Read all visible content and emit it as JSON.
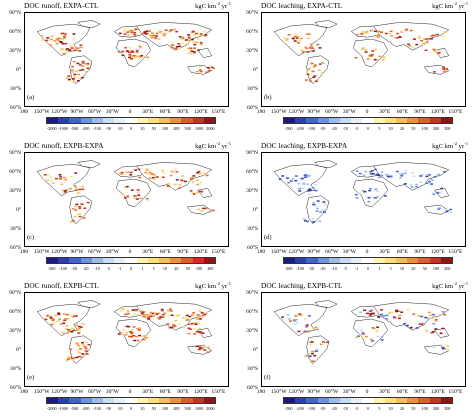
{
  "panels": [
    {
      "title": "DOC runoff, EXPA-CTL",
      "unit_base": "kgC km",
      "unit_exp1": "-2",
      "unit_mid": " yr",
      "unit_exp2": "-1",
      "label": "(a)",
      "ticks": [
        "-2000",
        "-1000",
        "-500",
        "-200",
        "-100",
        "-50",
        "-10",
        "0",
        "10",
        "50",
        "100",
        "200",
        "500",
        "1000",
        "2000"
      ],
      "tone": "warm",
      "density": 1.0
    },
    {
      "title": "DOC leaching, EXPA-CTL",
      "unit_base": "kgC km",
      "unit_exp1": "-2",
      "unit_mid": " yr",
      "unit_exp2": "-1",
      "label": "(b)",
      "ticks": [
        "-500",
        "-200",
        "-100",
        "-50",
        "-20",
        "-10",
        "-5",
        "0",
        "5",
        "10",
        "20",
        "50",
        "100",
        "200",
        "500"
      ],
      "tone": "warm",
      "density": 0.6
    },
    {
      "title": "DOC runoff, EXPB-EXPA",
      "unit_base": "kgC km",
      "unit_exp1": "-2",
      "unit_mid": " yr",
      "unit_exp2": "-1",
      "label": "(c)",
      "ticks": [
        "-200",
        "-100",
        "-50",
        "-20",
        "-10",
        "-5",
        "-1",
        "0",
        "1",
        "5",
        "10",
        "20",
        "50",
        "100",
        "200"
      ],
      "tone": "warm",
      "density": 0.55
    },
    {
      "title": "DOC leaching, EXPB-EXPA",
      "unit_base": "kgC km",
      "unit_exp1": "-2",
      "unit_mid": " yr",
      "unit_exp2": "-1",
      "label": "(d)",
      "ticks": [
        "-200",
        "-100",
        "-50",
        "-20",
        "-10",
        "-5",
        "-1",
        "0",
        "1",
        "5",
        "10",
        "20",
        "50",
        "100",
        "200"
      ],
      "tone": "cool",
      "density": 0.55
    },
    {
      "title": "DOC runoff, EXPB-CTL",
      "unit_base": "kgC km",
      "unit_exp1": "-2",
      "unit_mid": " yr",
      "unit_exp2": "-1",
      "label": "(e)",
      "ticks": [
        "-2000",
        "-1000",
        "-500",
        "-200",
        "-100",
        "-50",
        "-10",
        "0",
        "10",
        "50",
        "100",
        "200",
        "500",
        "1000",
        "2000"
      ],
      "tone": "warm",
      "density": 1.0
    },
    {
      "title": "DOC leaching, EXPB-CTL",
      "unit_base": "kgC km",
      "unit_exp1": "-2",
      "unit_mid": " yr",
      "unit_exp2": "-1",
      "label": "(f)",
      "ticks": [
        "-500",
        "-200",
        "-100",
        "-50",
        "-20",
        "-10",
        "-5",
        "0",
        "5",
        "10",
        "20",
        "50",
        "100",
        "200",
        "500"
      ],
      "tone": "mixed",
      "density": 0.6
    }
  ],
  "lat_labels": [
    "90°N",
    "60°N",
    "30°N",
    "0°",
    "30°S",
    "60°S"
  ],
  "lon_labels": [
    "180",
    "150°W",
    "120°W",
    "90°W",
    "60°W",
    "30°W",
    "0",
    "30°E",
    "60°E",
    "90°E",
    "120°E",
    "150°E"
  ],
  "colorbar_colors": [
    "#1a1a80",
    "#2b3fb0",
    "#3f66cf",
    "#6b93df",
    "#9cbbe8",
    "#c7dcf0",
    "#e6eef7",
    "#ffffff",
    "#fff3b0",
    "#fde07a",
    "#f9be55",
    "#f28f3b",
    "#e25d2a",
    "#c8321f",
    "#8f1414"
  ],
  "chart_data": [
    {
      "type": "heatmap",
      "title": "DOC runoff, EXPA-CTL",
      "units": "kgC km-2 yr-1",
      "ylim": [
        "60°S",
        "90°N"
      ],
      "xlim": [
        "180",
        "150°E"
      ],
      "colorbar_ticks": [
        -2000,
        -1000,
        -500,
        -200,
        -100,
        -50,
        -10,
        0,
        10,
        50,
        100,
        200,
        500,
        1000,
        2000
      ]
    },
    {
      "type": "heatmap",
      "title": "DOC leaching, EXPA-CTL",
      "units": "kgC km-2 yr-1",
      "ylim": [
        "60°S",
        "90°N"
      ],
      "xlim": [
        "180",
        "150°E"
      ],
      "colorbar_ticks": [
        -500,
        -200,
        -100,
        -50,
        -20,
        -10,
        -5,
        0,
        5,
        10,
        20,
        50,
        100,
        200,
        500
      ]
    },
    {
      "type": "heatmap",
      "title": "DOC runoff, EXPB-EXPA",
      "units": "kgC km-2 yr-1",
      "ylim": [
        "60°S",
        "90°N"
      ],
      "xlim": [
        "180",
        "150°E"
      ],
      "colorbar_ticks": [
        -200,
        -100,
        -50,
        -20,
        -10,
        -5,
        -1,
        0,
        1,
        5,
        10,
        20,
        50,
        100,
        200
      ]
    },
    {
      "type": "heatmap",
      "title": "DOC leaching, EXPB-EXPA",
      "units": "kgC km-2 yr-1",
      "ylim": [
        "60°S",
        "90°N"
      ],
      "xlim": [
        "180",
        "150°E"
      ],
      "colorbar_ticks": [
        -200,
        -100,
        -50,
        -20,
        -10,
        -5,
        -1,
        0,
        1,
        5,
        10,
        20,
        50,
        100,
        200
      ]
    },
    {
      "type": "heatmap",
      "title": "DOC runoff, EXPB-CTL",
      "units": "kgC km-2 yr-1",
      "ylim": [
        "60°S",
        "90°N"
      ],
      "xlim": [
        "180",
        "150°E"
      ],
      "colorbar_ticks": [
        -2000,
        -1000,
        -500,
        -200,
        -100,
        -50,
        -10,
        0,
        10,
        50,
        100,
        200,
        500,
        1000,
        2000
      ]
    },
    {
      "type": "heatmap",
      "title": "DOC leaching, EXPB-CTL",
      "units": "kgC km-2 yr-1",
      "ylim": [
        "60°S",
        "90°N"
      ],
      "xlim": [
        "180",
        "150°E"
      ],
      "colorbar_ticks": [
        -500,
        -200,
        -100,
        -50,
        -20,
        -10,
        -5,
        0,
        5,
        10,
        20,
        50,
        100,
        200,
        500
      ]
    }
  ]
}
